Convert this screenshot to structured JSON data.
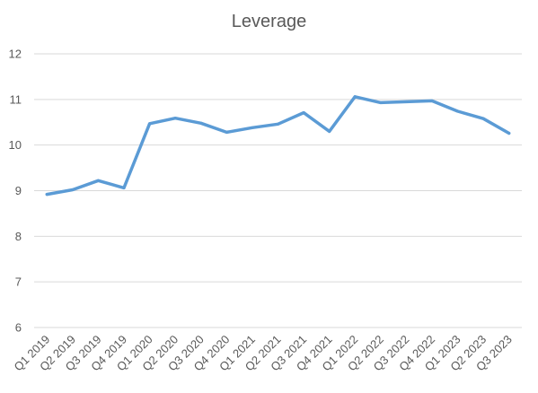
{
  "chart_data": {
    "type": "line",
    "title": "Leverage",
    "xlabel": "",
    "ylabel": "",
    "categories": [
      "Q1 2019",
      "Q2 2019",
      "Q3 2019",
      "Q4 2019",
      "Q1 2020",
      "Q2 2020",
      "Q3 2020",
      "Q4 2020",
      "Q1 2021",
      "Q2 2021",
      "Q3 2021",
      "Q4 2021",
      "Q1 2022",
      "Q2 2022",
      "Q3 2022",
      "Q4 2022",
      "Q1 2023",
      "Q2 2023",
      "Q3 2023"
    ],
    "series": [
      {
        "values": [
          8.92,
          9.02,
          9.22,
          9.06,
          10.47,
          10.59,
          10.48,
          10.28,
          10.38,
          10.46,
          10.71,
          10.3,
          11.06,
          10.93,
          10.95,
          10.97,
          10.74,
          10.58,
          10.26
        ],
        "color": "#5b9bd5"
      }
    ],
    "ylim": [
      6,
      12
    ],
    "yticks": [
      6,
      7,
      8,
      9,
      10,
      11,
      12
    ],
    "grid": true,
    "legend": "none",
    "colors": {
      "line": "#5b9bd5",
      "grid": "#d9d9d9",
      "text": "#595959"
    }
  }
}
